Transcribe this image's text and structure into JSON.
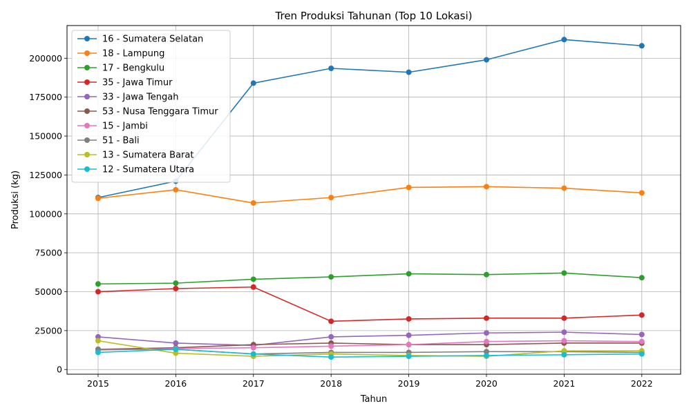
{
  "chart_data": {
    "type": "line",
    "title": "Tren Produksi Tahunan (Top 10 Lokasi)",
    "xlabel": "Tahun",
    "ylabel": "Produksi (kg)",
    "x": [
      2015,
      2016,
      2017,
      2018,
      2019,
      2020,
      2021,
      2022
    ],
    "x_ticks": [
      "2015",
      "2016",
      "2017",
      "2018",
      "2019",
      "2020",
      "2021",
      "2022"
    ],
    "y_ticks": [
      0,
      25000,
      50000,
      75000,
      100000,
      125000,
      150000,
      175000,
      200000
    ],
    "y_tick_labels": [
      "0",
      "25000",
      "50000",
      "75000",
      "100000",
      "125000",
      "150000",
      "175000",
      "200000"
    ],
    "xlim": [
      2014.6,
      2022.5
    ],
    "ylim": [
      -3000,
      221000
    ],
    "grid": true,
    "legend_position": "top-left",
    "series": [
      {
        "name": "16 - Sumatera Selatan",
        "color": "#1f77b4",
        "values": [
          110500,
          121000,
          184000,
          193500,
          191000,
          199000,
          212000,
          208000
        ]
      },
      {
        "name": "18 - Lampung",
        "color": "#ff7f0e",
        "values": [
          110000,
          115500,
          107000,
          110500,
          117000,
          117500,
          116500,
          113500
        ]
      },
      {
        "name": "17 - Bengkulu",
        "color": "#2ca02c",
        "values": [
          55000,
          55500,
          58000,
          59500,
          61500,
          61000,
          62000,
          59000
        ]
      },
      {
        "name": "35 - Jawa Timur",
        "color": "#d62728",
        "values": [
          50000,
          52000,
          53000,
          31000,
          32500,
          33000,
          33000,
          35000
        ]
      },
      {
        "name": "33 - Jawa Tengah",
        "color": "#9467bd",
        "values": [
          21000,
          17000,
          15500,
          21000,
          22000,
          23500,
          24000,
          22500
        ]
      },
      {
        "name": "53 - Nusa Tenggara Timur",
        "color": "#8c564b",
        "values": [
          13000,
          14000,
          16000,
          17000,
          16000,
          16000,
          17000,
          17000
        ]
      },
      {
        "name": "15 - Jambi",
        "color": "#e377c2",
        "values": [
          12500,
          13500,
          14000,
          15000,
          16000,
          18000,
          18500,
          18000
        ]
      },
      {
        "name": "51 - Bali",
        "color": "#7f7f7f",
        "values": [
          13000,
          13000,
          10000,
          11000,
          11000,
          11500,
          11500,
          11000
        ]
      },
      {
        "name": "13 - Sumatera Barat",
        "color": "#bcbd22",
        "values": [
          18500,
          10500,
          8500,
          10000,
          9000,
          8500,
          12000,
          12000
        ]
      },
      {
        "name": "12 - Sumatera Utara",
        "color": "#17becf",
        "values": [
          11000,
          13000,
          10000,
          8000,
          8500,
          9000,
          9500,
          10000
        ]
      }
    ]
  }
}
